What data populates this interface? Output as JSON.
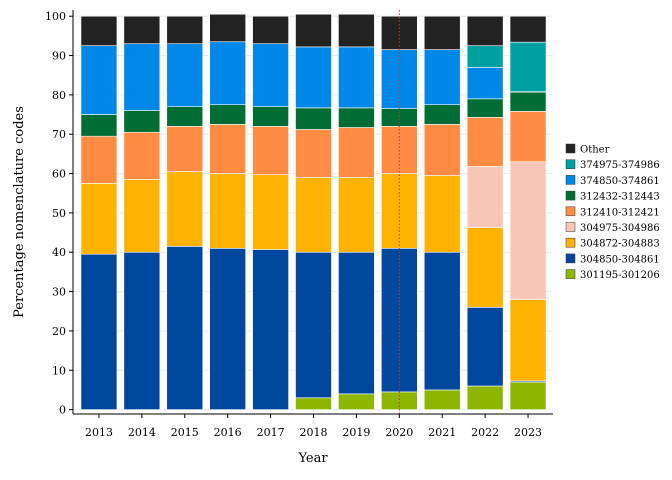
{
  "chart_data": {
    "type": "bar",
    "stacked": true,
    "xlabel": "Year",
    "ylabel": "Percentage nomenclature codes",
    "ylim": [
      0,
      100
    ],
    "yticks": [
      0,
      10,
      20,
      30,
      40,
      50,
      60,
      70,
      80,
      90,
      100
    ],
    "categories": [
      "2013",
      "2014",
      "2015",
      "2016",
      "2017",
      "2018",
      "2019",
      "2020",
      "2021",
      "2022",
      "2023"
    ],
    "reference_line": {
      "x": "2020",
      "color": "#c0392b",
      "style": "dotted"
    },
    "grid": "horizontal",
    "legend_position": "right",
    "series": [
      {
        "name": "301195-301206",
        "color": "#8db600",
        "values": [
          0,
          0,
          0,
          0,
          0,
          3,
          4,
          4.5,
          5,
          6,
          7
        ]
      },
      {
        "name": "304850-304861",
        "color": "#00479d",
        "values": [
          39.5,
          40,
          41.5,
          41,
          40.7,
          37,
          36,
          36.5,
          35,
          20,
          0.3
        ]
      },
      {
        "name": "304872-304883",
        "color": "#ffb300",
        "values": [
          18,
          18.5,
          19,
          19,
          19,
          19,
          19,
          19,
          19.5,
          20.3,
          20.7
        ]
      },
      {
        "name": "304975-304986",
        "color": "#f7c6b8",
        "values": [
          0,
          0,
          0,
          0,
          0,
          0,
          0,
          0,
          0,
          15.5,
          35
        ]
      },
      {
        "name": "312410-312421",
        "color": "#ff8c42",
        "values": [
          12,
          12,
          11.5,
          12.5,
          12.3,
          12.2,
          12.7,
          12,
          13,
          12.5,
          12.8
        ]
      },
      {
        "name": "312432-312443",
        "color": "#006e34",
        "values": [
          5.5,
          5.5,
          5,
          5,
          5,
          5.5,
          5,
          4.5,
          5,
          4.7,
          4.9
        ]
      },
      {
        "name": "374850-374861",
        "color": "#0088e8",
        "values": [
          17.5,
          17,
          16,
          16,
          16,
          15.5,
          15.5,
          15,
          14,
          8,
          0.1
        ]
      },
      {
        "name": "374975-374986",
        "color": "#00a0a0",
        "values": [
          0,
          0,
          0,
          0,
          0,
          0,
          0,
          0,
          0,
          5.5,
          12.6
        ]
      },
      {
        "name": "Other",
        "color": "#222222",
        "values": [
          7.5,
          7,
          7,
          7,
          7,
          8.3,
          8.3,
          8.5,
          8.5,
          7.5,
          6.6
        ]
      }
    ]
  }
}
